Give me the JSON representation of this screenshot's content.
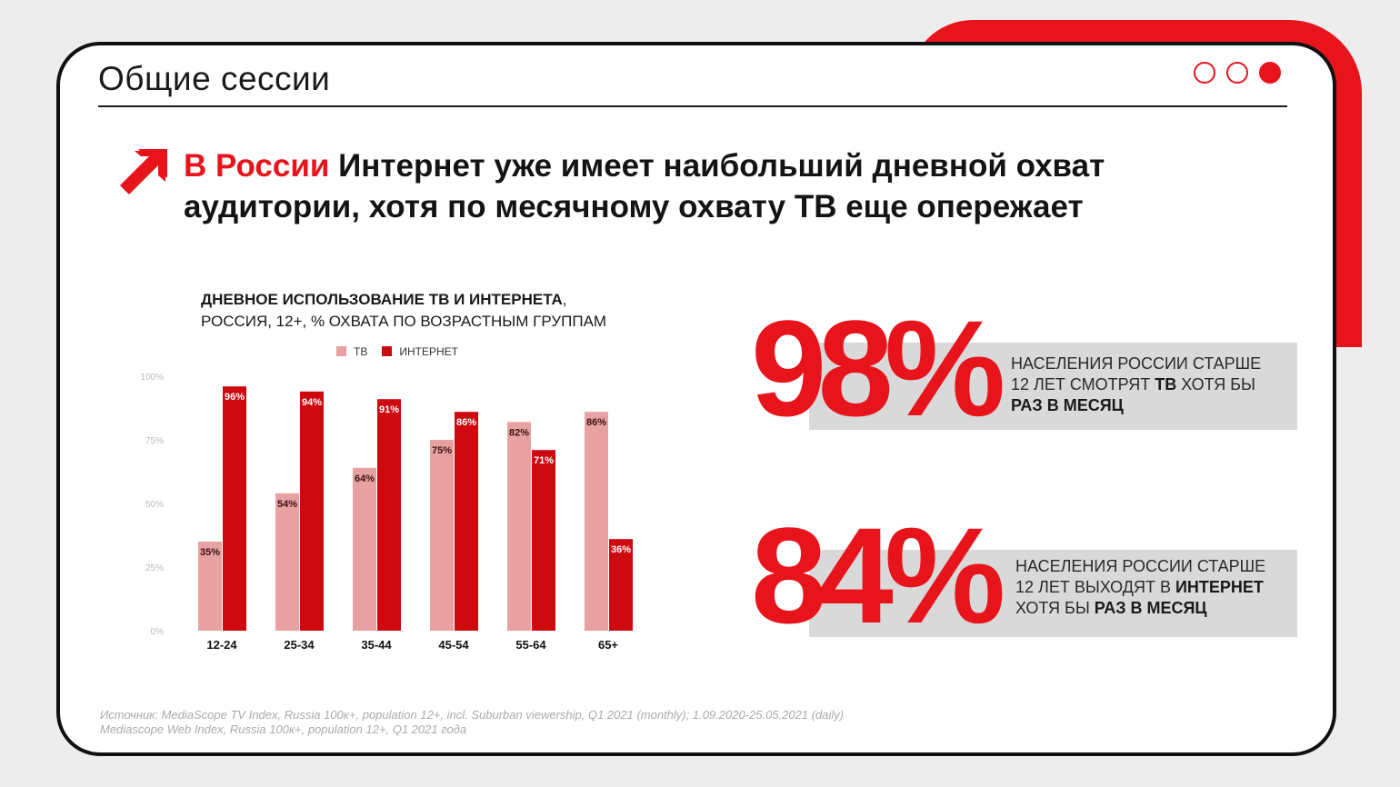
{
  "header": {
    "title": "Общие сессии"
  },
  "headline": {
    "highlight": "В России",
    "rest": " Интернет уже имеет наибольший дневной охват аудитории, хотя по месячному охвату ТВ еще опережает"
  },
  "chart_title": {
    "line1": "ДНЕВНОЕ ИСПОЛЬЗОВАНИЕ ТВ И ИНТЕРНЕТА",
    "line1_suffix": ",",
    "line2": "РОССИЯ, 12+, % ОХВАТА ПО ВОЗРАСТНЫМ ГРУППАМ"
  },
  "colors": {
    "accent": "#e8141c",
    "tv": "#e8a1a1",
    "internet": "#cc0a10"
  },
  "chart_data": {
    "type": "bar",
    "categories": [
      "12-24",
      "25-34",
      "35-44",
      "45-54",
      "55-64",
      "65+"
    ],
    "series": [
      {
        "name": "ТВ",
        "values": [
          35,
          54,
          64,
          75,
          82,
          86
        ]
      },
      {
        "name": "ИНТЕРНЕТ",
        "values": [
          96,
          94,
          91,
          86,
          71,
          36
        ]
      }
    ],
    "yticks": [
      "0%",
      "25%",
      "50%",
      "75%",
      "100%"
    ],
    "ylim": [
      0,
      100
    ],
    "value_suffix": "%",
    "legend_position": "top",
    "grid": false
  },
  "stats": [
    {
      "value": "98%",
      "text_parts": [
        {
          "t": "НАСЕЛЕНИЯ РОССИИ СТАРШЕ 12 ЛЕТ СМОТРЯТ ",
          "b": false
        },
        {
          "t": "ТВ",
          "b": true
        },
        {
          "t": " ХОТЯ БЫ ",
          "b": false
        },
        {
          "t": "РАЗ В МЕСЯЦ",
          "b": true
        }
      ]
    },
    {
      "value": "84%",
      "text_parts": [
        {
          "t": "НАСЕЛЕНИЯ РОССИИ СТАРШЕ 12 ЛЕТ ВЫХОДЯТ В ",
          "b": false
        },
        {
          "t": "ИНТЕРНЕТ",
          "b": true
        },
        {
          "t": " ХОТЯ БЫ ",
          "b": false
        },
        {
          "t": "РАЗ В МЕСЯЦ",
          "b": true
        }
      ]
    }
  ],
  "source": {
    "line1": "Источник: MediaScope TV  Index, Russia 100к+, population 12+, incl. Suburban viewership, Q1 2021 (monthly); 1.09.2020-25.05.2021 (daily)",
    "line2": "Mediascope Web Index, Russia 100к+, population 12+, Q1 2021 года"
  }
}
